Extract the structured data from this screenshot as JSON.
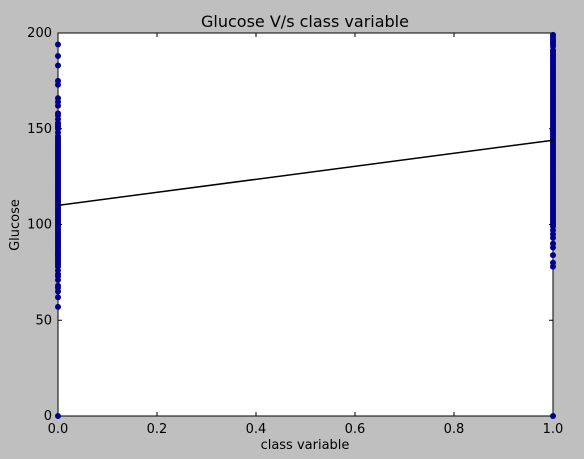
{
  "chart_data": {
    "type": "scatter",
    "title": "Glucose V/s class variable",
    "xlabel": "class variable",
    "ylabel": "Glucose",
    "xlim": [
      0.0,
      1.0
    ],
    "ylim": [
      0,
      200
    ],
    "x_ticks": [
      "0.0",
      "0.2",
      "0.4",
      "0.6",
      "0.8",
      "1.0"
    ],
    "y_ticks": [
      "0",
      "50",
      "100",
      "150",
      "200"
    ],
    "grid": false,
    "marker_color": "#00008b",
    "line_color": "#000000",
    "series": [
      {
        "x": 0,
        "values": [
          0,
          57,
          62,
          65,
          67,
          68,
          71,
          73,
          74,
          76,
          78,
          79,
          80,
          81,
          82,
          83,
          84,
          85,
          86,
          87,
          88,
          89,
          90,
          91,
          92,
          93,
          94,
          95,
          96,
          97,
          98,
          99,
          100,
          101,
          102,
          103,
          104,
          105,
          106,
          107,
          108,
          109,
          110,
          111,
          112,
          113,
          114,
          115,
          116,
          117,
          118,
          119,
          120,
          121,
          122,
          123,
          124,
          125,
          126,
          127,
          128,
          129,
          130,
          131,
          132,
          133,
          134,
          135,
          136,
          137,
          138,
          139,
          140,
          141,
          142,
          143,
          144,
          145,
          146,
          148,
          150,
          151,
          152,
          153,
          155,
          157,
          158,
          162,
          164,
          166,
          173,
          175,
          183,
          188,
          194
        ]
      },
      {
        "x": 1,
        "values": [
          0,
          78,
          80,
          84,
          88,
          90,
          93,
          95,
          97,
          99,
          100,
          101,
          102,
          103,
          104,
          105,
          106,
          107,
          108,
          109,
          110,
          111,
          112,
          113,
          114,
          115,
          116,
          117,
          118,
          119,
          120,
          121,
          122,
          123,
          124,
          125,
          126,
          127,
          128,
          129,
          130,
          131,
          132,
          133,
          134,
          135,
          136,
          137,
          138,
          139,
          140,
          141,
          142,
          143,
          144,
          145,
          146,
          147,
          148,
          149,
          150,
          151,
          152,
          153,
          154,
          155,
          156,
          157,
          158,
          159,
          160,
          161,
          162,
          163,
          164,
          165,
          166,
          167,
          168,
          169,
          170,
          171,
          172,
          173,
          174,
          175,
          176,
          177,
          178,
          179,
          180,
          181,
          182,
          183,
          184,
          185,
          186,
          187,
          188,
          189,
          190,
          191,
          193,
          194,
          195,
          196,
          197,
          198,
          199
        ]
      }
    ],
    "regression_line": {
      "x": [
        0,
        1
      ],
      "y": [
        110,
        144
      ]
    }
  }
}
